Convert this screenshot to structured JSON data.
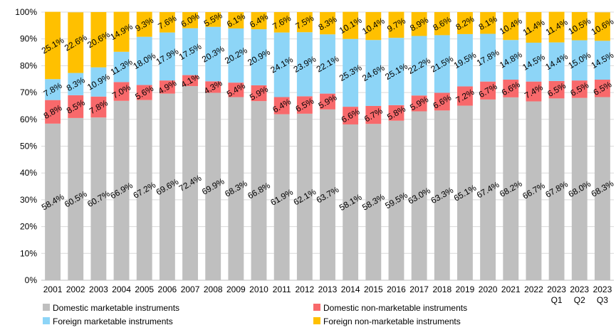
{
  "chart_data": {
    "type": "stacked_bar",
    "categories": [
      "2001",
      "2002",
      "2003",
      "2004",
      "2005",
      "2006",
      "2007",
      "2008",
      "2009",
      "2010",
      "2011",
      "2012",
      "2013",
      "2014",
      "2015",
      "2016",
      "2017",
      "2018",
      "2019",
      "2020",
      "2021",
      "2022",
      "2023 Q1",
      "2023 Q2",
      "2023 Q3"
    ],
    "series": [
      {
        "name": "Domestic marketable instruments",
        "color": "#bfbfbf",
        "values": [
          58.4,
          60.5,
          60.7,
          66.9,
          67.2,
          69.6,
          72.4,
          69.9,
          68.3,
          66.8,
          61.9,
          62.1,
          63.7,
          58.1,
          58.3,
          59.5,
          63.0,
          63.3,
          65.1,
          67.4,
          68.2,
          66.7,
          67.8,
          68.0,
          68.3
        ],
        "value_labels": [
          "58.4%",
          "60.5%",
          "60.7%",
          "66.9%",
          "67.2%",
          "69.6%",
          "72.4%",
          "69.9%",
          "68.3%",
          "66.8%",
          "61.9%",
          "62.1%",
          "63.7%",
          "58.1%",
          "58.3%",
          "59.5%",
          "63.0%",
          "63.3%",
          "65.1%",
          "67.4%",
          "68.2%",
          "66.7%",
          "67.8%",
          "68.0%",
          "68.3%"
        ]
      },
      {
        "name": "Domestic non-marketable instruments",
        "color": "#f8696b",
        "values": [
          8.8,
          8.5,
          7.8,
          7.0,
          5.6,
          4.9,
          4.1,
          4.3,
          5.4,
          5.9,
          6.4,
          6.5,
          5.9,
          6.6,
          6.7,
          5.8,
          5.9,
          6.6,
          7.2,
          6.7,
          6.6,
          7.4,
          6.5,
          6.5,
          6.5
        ],
        "value_labels": [
          "8.8%",
          "8.5%",
          "7.8%",
          "7.0%",
          "5.6%",
          "4.9%",
          "4.1%",
          "4.3%",
          "5.4%",
          "5.9%",
          "6.4%",
          "6.5%",
          "5.9%",
          "6.6%",
          "6.7%",
          "5.8%",
          "5.9%",
          "6.6%",
          "7.2%",
          "6.7%",
          "6.6%",
          "7.4%",
          "6.5%",
          "6.5%",
          "6.5%"
        ]
      },
      {
        "name": "Foreign marketable instruments",
        "color": "#8dd5f7",
        "values": [
          7.8,
          8.3,
          10.9,
          11.3,
          18.0,
          17.9,
          17.5,
          20.3,
          20.2,
          20.9,
          24.1,
          23.9,
          22.1,
          25.3,
          24.6,
          25.1,
          22.2,
          21.5,
          19.5,
          17.8,
          14.8,
          14.5,
          14.4,
          15.0,
          14.5
        ],
        "value_labels": [
          "7.8%",
          "8.3%",
          "10.9%",
          "11.3%",
          "18.0%",
          "17.9%",
          "17.5%",
          "20.3%",
          "20.2%",
          "20.9%",
          "24.1%",
          "23.9%",
          "22.1%",
          "25.3%",
          "24.6%",
          "25.1%",
          "22.2%",
          "21.5%",
          "19.5%",
          "17.8%",
          "14.8%",
          "14.5%",
          "14.4%",
          "15.0%",
          "14.5%"
        ]
      },
      {
        "name": "Foreign non-marketable instruments",
        "color": "#ffc000",
        "values": [
          25.1,
          22.6,
          20.6,
          14.9,
          9.3,
          7.6,
          6.0,
          5.5,
          6.1,
          6.4,
          7.6,
          7.5,
          8.3,
          10.1,
          10.4,
          9.7,
          8.9,
          8.6,
          8.2,
          8.1,
          10.4,
          11.4,
          11.4,
          10.5,
          10.6
        ],
        "value_labels": [
          "25.1%",
          "22.6%",
          "20.6%",
          "14.9%",
          "9.3%",
          "7.6%",
          "6.0%",
          "5.5%",
          "6.1%",
          "6.4%",
          "7.6%",
          "7.5%",
          "8.3%",
          "10.1%",
          "10.4%",
          "9.7%",
          "8.9%",
          "8.6%",
          "8.2%",
          "8.1%",
          "10.4%",
          "11.4%",
          "11.4%",
          "10.5%",
          "10.6%"
        ]
      }
    ],
    "ylim": [
      0,
      100
    ],
    "yticks": [
      {
        "value": 0,
        "label": "0%"
      },
      {
        "value": 10,
        "label": "10%"
      },
      {
        "value": 20,
        "label": "20%"
      },
      {
        "value": 30,
        "label": "30%"
      },
      {
        "value": 40,
        "label": "40%"
      },
      {
        "value": 50,
        "label": "50%"
      },
      {
        "value": 60,
        "label": "60%"
      },
      {
        "value": 70,
        "label": "70%"
      },
      {
        "value": 80,
        "label": "80%"
      },
      {
        "value": 90,
        "label": "90%"
      },
      {
        "value": 100,
        "label": "100%"
      }
    ],
    "grid": true,
    "legend": "bottom"
  }
}
